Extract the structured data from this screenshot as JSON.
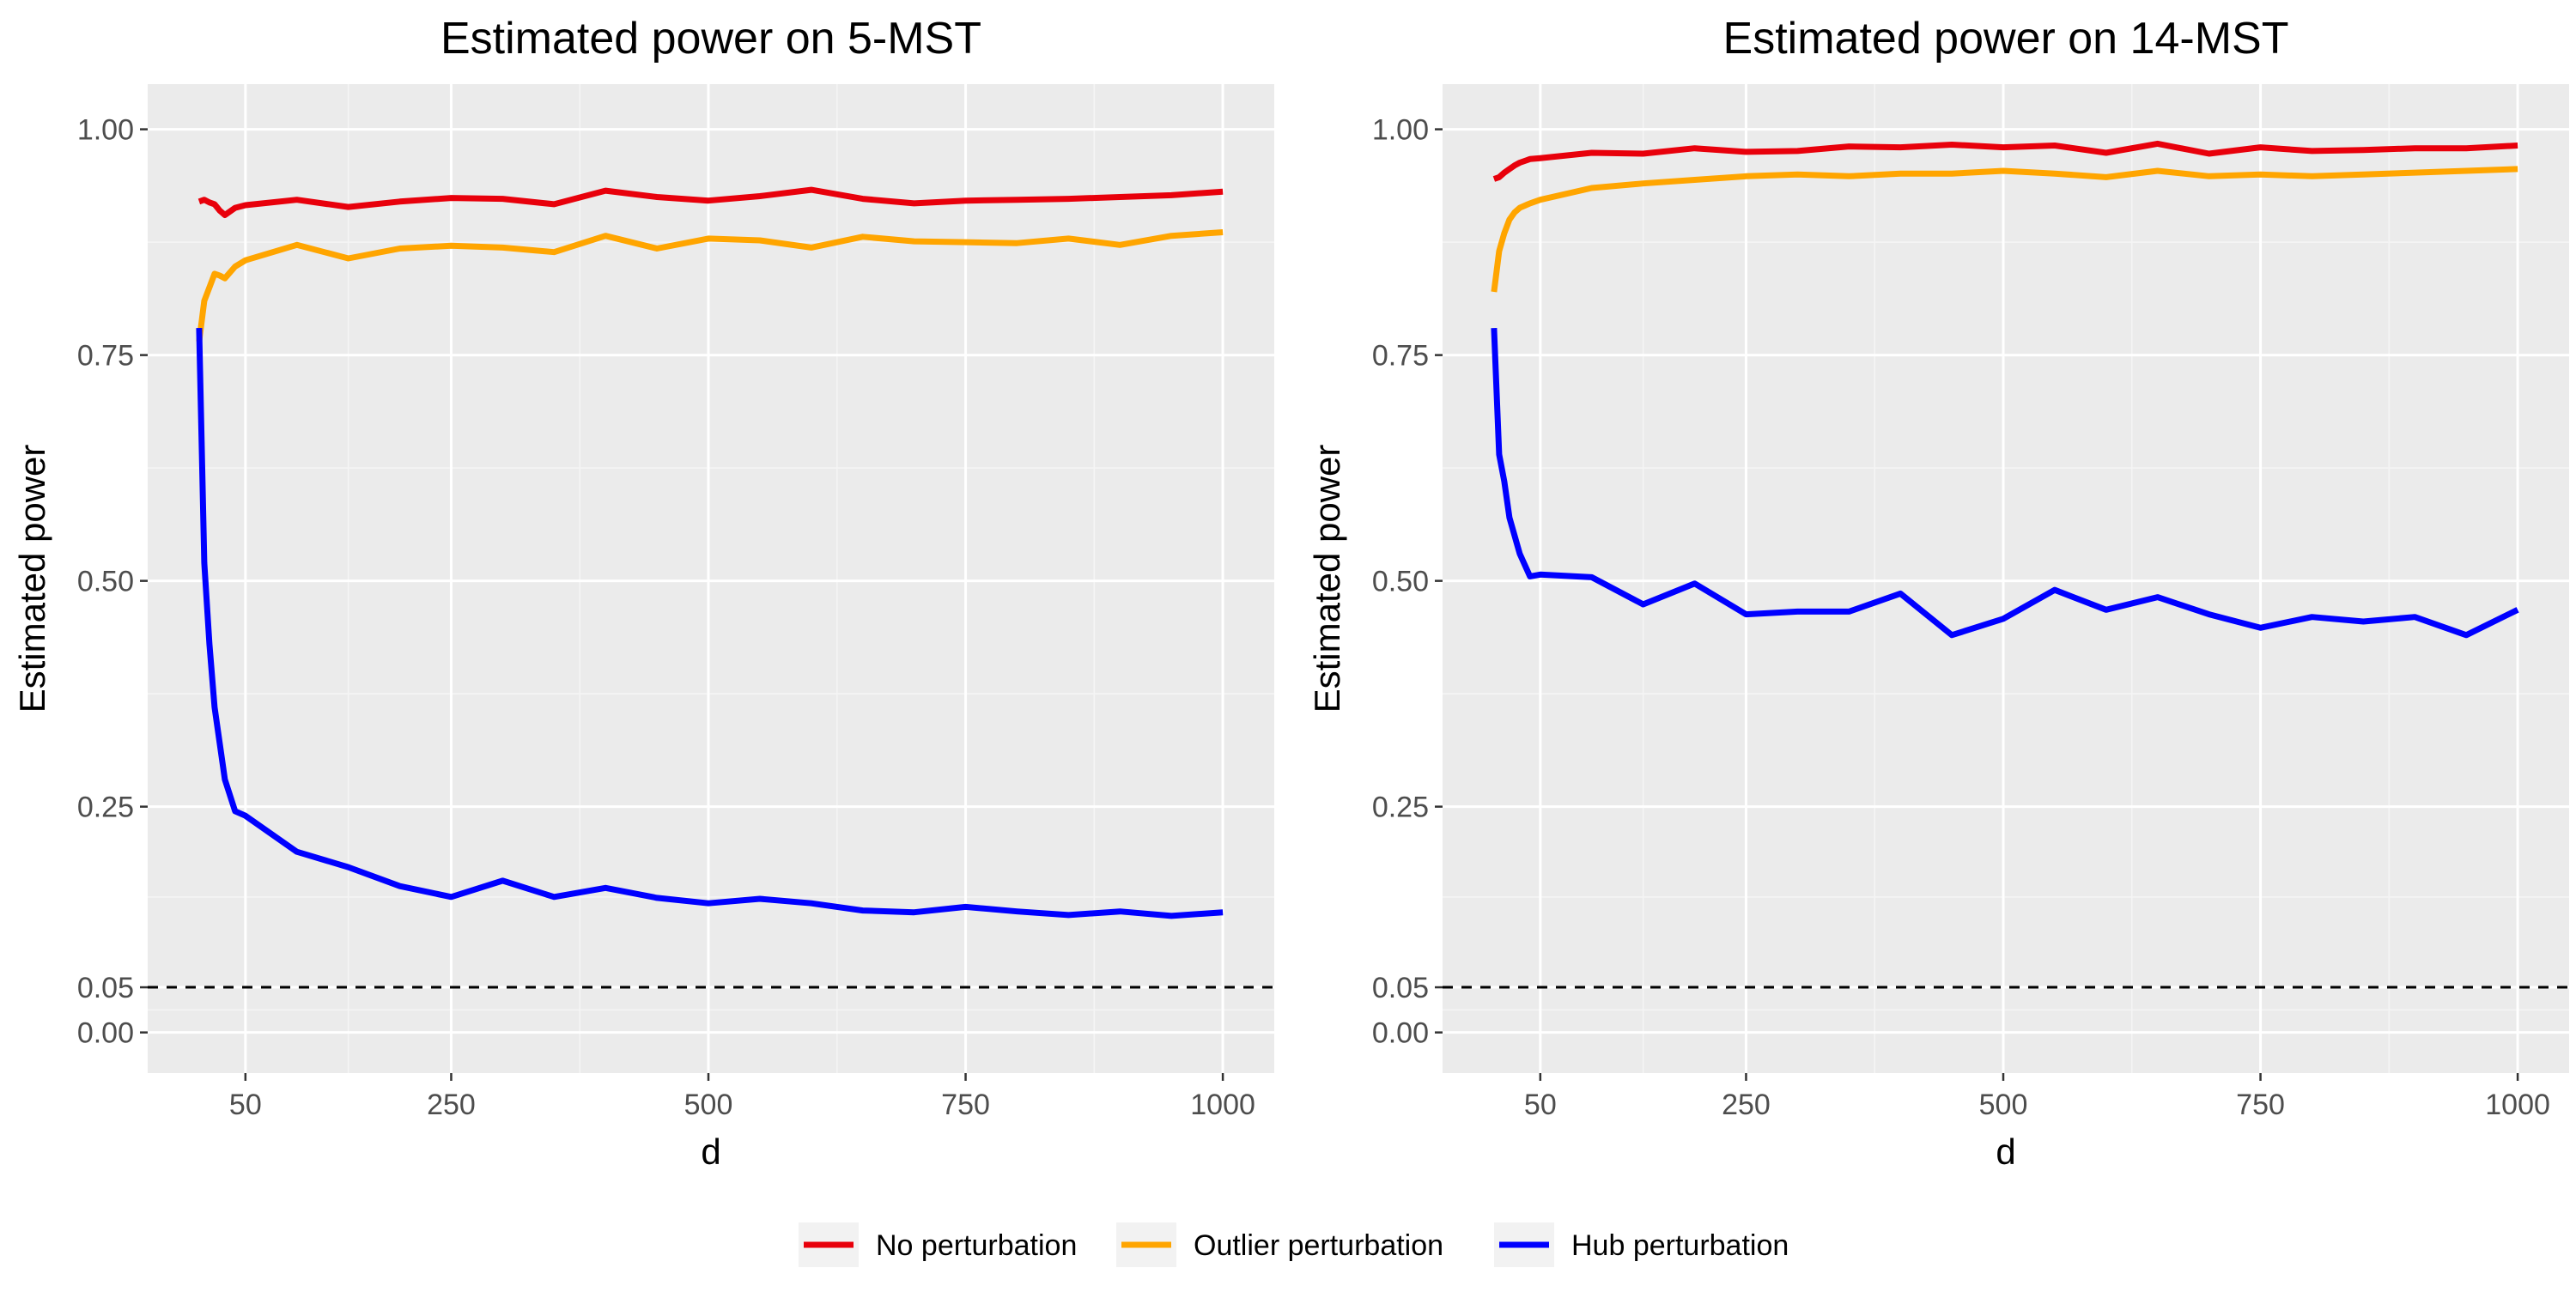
{
  "chart_data": [
    {
      "type": "line",
      "title": "Estimated power on 5-MST",
      "xlabel": "d",
      "ylabel": "Estimated power",
      "xlim": [
        -45,
        1050
      ],
      "ylim": [
        -0.045,
        1.05
      ],
      "x_ticks": [
        50,
        250,
        500,
        750,
        1000
      ],
      "y_ticks": [
        0.0,
        0.05,
        0.25,
        0.5,
        0.75,
        1.0
      ],
      "y_tick_labels": [
        "0.00",
        "0.05",
        "0.25",
        "0.50",
        "0.75",
        "1.00"
      ],
      "grid": true,
      "reference_line": {
        "y": 0.05,
        "style": "dashed"
      },
      "series": [
        {
          "name": "No perturbation",
          "x": [
            5,
            10,
            15,
            20,
            25,
            30,
            40,
            50,
            100,
            150,
            200,
            250,
            300,
            350,
            400,
            450,
            500,
            550,
            600,
            650,
            700,
            750,
            800,
            850,
            900,
            950,
            1000
          ],
          "y": [
            0.92,
            0.922,
            0.919,
            0.917,
            0.91,
            0.905,
            0.913,
            0.916,
            0.922,
            0.914,
            0.92,
            0.924,
            0.923,
            0.917,
            0.932,
            0.925,
            0.921,
            0.926,
            0.933,
            0.923,
            0.918,
            0.921,
            0.922,
            0.923,
            0.925,
            0.927,
            0.931
          ]
        },
        {
          "name": "Outlier perturbation",
          "x": [
            5,
            10,
            15,
            20,
            25,
            30,
            40,
            50,
            100,
            150,
            200,
            250,
            300,
            350,
            400,
            450,
            500,
            550,
            600,
            650,
            700,
            750,
            800,
            850,
            900,
            950,
            1000
          ],
          "y": [
            0.765,
            0.81,
            0.825,
            0.84,
            0.838,
            0.835,
            0.848,
            0.855,
            0.872,
            0.857,
            0.868,
            0.871,
            0.869,
            0.864,
            0.882,
            0.868,
            0.879,
            0.877,
            0.869,
            0.881,
            0.876,
            0.875,
            0.874,
            0.879,
            0.872,
            0.882,
            0.886
          ]
        },
        {
          "name": "Hub perturbation",
          "x": [
            5,
            10,
            15,
            20,
            25,
            30,
            40,
            50,
            100,
            150,
            200,
            250,
            300,
            350,
            400,
            450,
            500,
            550,
            600,
            650,
            700,
            750,
            800,
            850,
            900,
            950,
            1000
          ],
          "y": [
            0.78,
            0.52,
            0.43,
            0.36,
            0.32,
            0.28,
            0.245,
            0.24,
            0.2,
            0.183,
            0.162,
            0.15,
            0.168,
            0.15,
            0.16,
            0.149,
            0.143,
            0.148,
            0.143,
            0.135,
            0.133,
            0.139,
            0.134,
            0.13,
            0.134,
            0.129,
            0.133
          ]
        }
      ]
    },
    {
      "type": "line",
      "title": "Estimated power on 14-MST",
      "xlabel": "d",
      "ylabel": "Estimated power",
      "xlim": [
        -45,
        1050
      ],
      "ylim": [
        -0.045,
        1.05
      ],
      "x_ticks": [
        50,
        250,
        500,
        750,
        1000
      ],
      "y_ticks": [
        0.0,
        0.05,
        0.25,
        0.5,
        0.75,
        1.0
      ],
      "y_tick_labels": [
        "0.00",
        "0.05",
        "0.25",
        "0.50",
        "0.75",
        "1.00"
      ],
      "grid": true,
      "reference_line": {
        "y": 0.05,
        "style": "dashed"
      },
      "series": [
        {
          "name": "No perturbation",
          "x": [
            5,
            10,
            15,
            20,
            25,
            30,
            40,
            50,
            100,
            150,
            200,
            250,
            300,
            350,
            400,
            450,
            500,
            550,
            600,
            650,
            700,
            750,
            800,
            850,
            900,
            950,
            1000
          ],
          "y": [
            0.945,
            0.947,
            0.952,
            0.956,
            0.96,
            0.963,
            0.967,
            0.968,
            0.974,
            0.973,
            0.979,
            0.975,
            0.976,
            0.981,
            0.98,
            0.983,
            0.98,
            0.982,
            0.974,
            0.984,
            0.973,
            0.98,
            0.976,
            0.977,
            0.979,
            0.979,
            0.982
          ]
        },
        {
          "name": "Outlier perturbation",
          "x": [
            5,
            10,
            15,
            20,
            25,
            30,
            40,
            50,
            100,
            150,
            200,
            250,
            300,
            350,
            400,
            450,
            500,
            550,
            600,
            650,
            700,
            750,
            800,
            850,
            900,
            950,
            1000
          ],
          "y": [
            0.82,
            0.865,
            0.885,
            0.9,
            0.908,
            0.913,
            0.918,
            0.922,
            0.935,
            0.94,
            0.944,
            0.948,
            0.95,
            0.948,
            0.951,
            0.951,
            0.954,
            0.951,
            0.947,
            0.954,
            0.948,
            0.95,
            0.948,
            0.95,
            0.952,
            0.954,
            0.956
          ]
        },
        {
          "name": "Hub perturbation",
          "x": [
            5,
            10,
            15,
            20,
            25,
            30,
            40,
            50,
            100,
            150,
            200,
            250,
            300,
            350,
            400,
            450,
            500,
            550,
            600,
            650,
            700,
            750,
            800,
            850,
            900,
            950,
            1000
          ],
          "y": [
            0.78,
            0.64,
            0.61,
            0.57,
            0.55,
            0.53,
            0.505,
            0.507,
            0.504,
            0.474,
            0.497,
            0.463,
            0.466,
            0.466,
            0.486,
            0.44,
            0.458,
            0.49,
            0.468,
            0.482,
            0.463,
            0.448,
            0.46,
            0.455,
            0.46,
            0.44,
            0.468
          ]
        }
      ]
    }
  ],
  "legend": {
    "position": "bottom",
    "items": [
      {
        "label": "No perturbation",
        "color": "#e8000b"
      },
      {
        "label": "Outlier perturbation",
        "color": "#ffa500"
      },
      {
        "label": "Hub perturbation",
        "color": "#0000ff"
      }
    ]
  },
  "colors": {
    "panel_background": "#ebebeb",
    "grid_major": "#ffffff",
    "grid_minor": "#f5f5f5",
    "reference_line": "#000000",
    "tick_text": "#4d4d4d"
  }
}
